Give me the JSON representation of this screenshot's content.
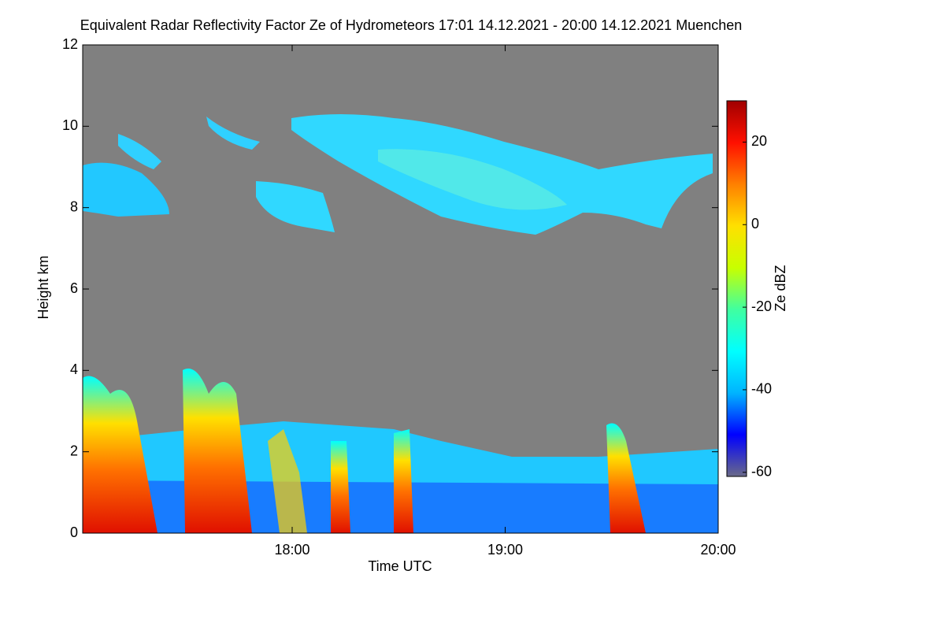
{
  "chart_data": {
    "type": "heatmap",
    "title": "Equivalent Radar Reflectivity Factor Ze of Hydrometeors   17:01 14.12.2021 - 20:00 14.12.2021 Muenchen",
    "x_label": "Time UTC",
    "y_label": "Height km",
    "colorbar_label": "Ze dBZ",
    "xlim": [
      1021,
      1200
    ],
    "xticks": [
      {
        "value": 1080,
        "label": "18:00"
      },
      {
        "value": 1140,
        "label": "19:00"
      },
      {
        "value": 1200,
        "label": "20:00"
      }
    ],
    "ylim": [
      0,
      12
    ],
    "yticks": [
      0,
      2,
      4,
      6,
      8,
      10,
      12
    ],
    "clim": [
      -61,
      30
    ],
    "cticks": [
      -60,
      -40,
      -20,
      0,
      20
    ],
    "colormap": [
      "#6a6a88",
      "#0000ff",
      "#00b4ff",
      "#00ffff",
      "#40ffa0",
      "#c8ff00",
      "#ffe000",
      "#ff8000",
      "#ff1000",
      "#a00000"
    ],
    "background_color": "#808080"
  }
}
